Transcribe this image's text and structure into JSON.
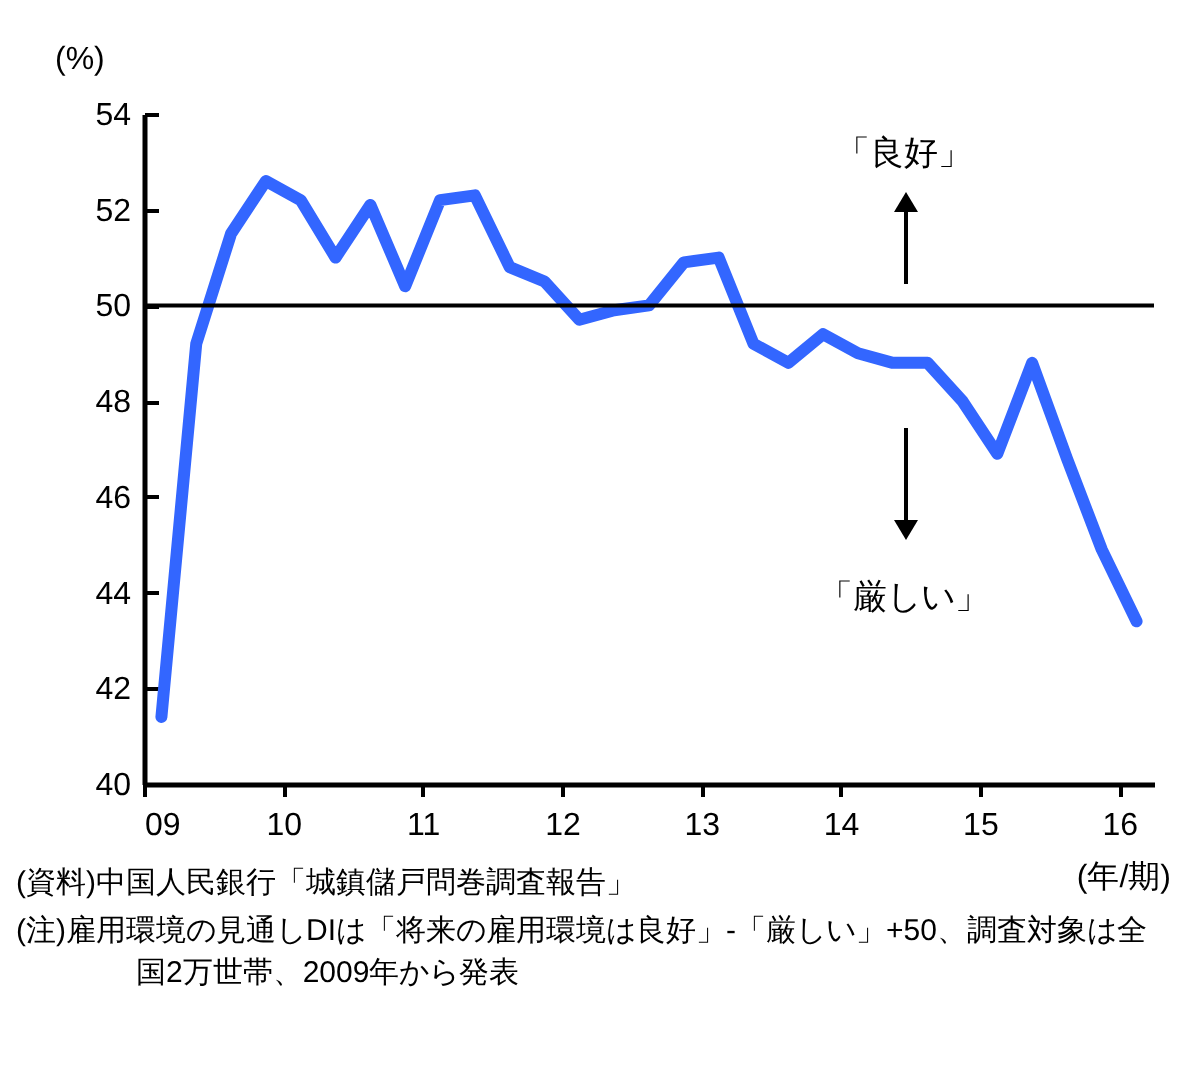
{
  "chart_data": {
    "type": "line",
    "ylabel": "(%)",
    "xlabel": "(年/期)",
    "x": [
      2009.125,
      2009.375,
      2009.625,
      2009.875,
      2010.125,
      2010.375,
      2010.625,
      2010.875,
      2011.125,
      2011.375,
      2011.625,
      2011.875,
      2012.125,
      2012.375,
      2012.625,
      2012.875,
      2013.125,
      2013.375,
      2013.625,
      2013.875,
      2014.125,
      2014.375,
      2014.625,
      2014.875,
      2015.125,
      2015.375,
      2015.625,
      2015.875,
      2016.125
    ],
    "series": [
      {
        "color": "#3366ff",
        "values": [
          41.4,
          49.2,
          51.5,
          52.6,
          52.2,
          51.0,
          52.1,
          50.4,
          52.2,
          52.3,
          50.8,
          50.5,
          49.7,
          49.9,
          50.0,
          50.9,
          51.0,
          49.2,
          48.8,
          49.4,
          49.0,
          48.8,
          48.8,
          48.0,
          46.9,
          48.8,
          46.8,
          44.9,
          43.4
        ]
      }
    ],
    "xlim": [
      2009,
      2016.25
    ],
    "xticks": [
      {
        "value": 2009,
        "label": "09"
      },
      {
        "value": 2010,
        "label": "10"
      },
      {
        "value": 2011,
        "label": "11"
      },
      {
        "value": 2012,
        "label": "12"
      },
      {
        "value": 2013,
        "label": "13"
      },
      {
        "value": 2014,
        "label": "14"
      },
      {
        "value": 2015,
        "label": "15"
      },
      {
        "value": 2016,
        "label": "16"
      }
    ],
    "ylim": [
      40,
      54
    ],
    "yticks": [
      40,
      42,
      44,
      46,
      48,
      50,
      52,
      54
    ],
    "ref_lines": [
      {
        "axis": "y",
        "value": 50,
        "color": "#000000"
      }
    ],
    "line_style": "solid",
    "marker": "none",
    "annotations": [
      "「良好」",
      "「厳しい」",
      "(資料)中国人民銀行「城鎮儲戸問巻調査報告」",
      "(注)雇用環境の見通しDIは「将来の雇用環境は良好」-「厳しい」+50、調査対象は全国2万世帯、2009年から発表"
    ]
  }
}
